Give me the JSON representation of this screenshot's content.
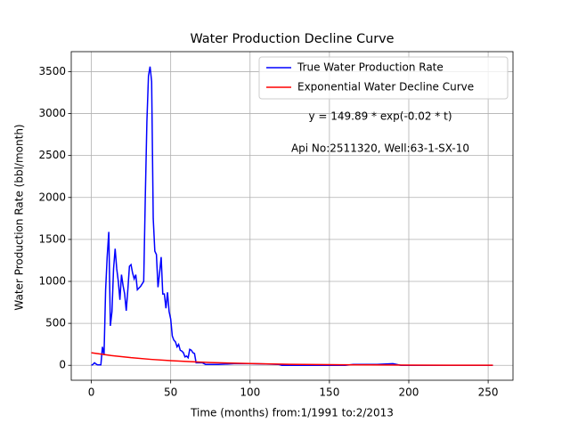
{
  "chart_data": {
    "type": "line",
    "title": "Water Production Decline Curve",
    "xlabel": "Time (months) from:1/1991 to:2/2013",
    "ylabel": "Water Production Rate (bbl/month)",
    "annotations": [
      "y = 149.89 * exp(-0.02 * t)",
      "Api No:2511320, Well:63-1-SX-10"
    ],
    "xlim": [
      -12.65,
      265.65
    ],
    "xticks": [
      0,
      50,
      100,
      150,
      200,
      250
    ],
    "ylim": [
      -178,
      3738
    ],
    "yticks": [
      0,
      500,
      1000,
      1500,
      2000,
      2500,
      3000,
      3500
    ],
    "grid": true,
    "legend": "upper right",
    "series": [
      {
        "name": "True Water Production Rate",
        "color": "#0000ff",
        "x": [
          0,
          1,
          2,
          3,
          4,
          5,
          6,
          7,
          8,
          9,
          10,
          11,
          12,
          13,
          14,
          15,
          16,
          17,
          18,
          19,
          20,
          21,
          22,
          23,
          24,
          25,
          26,
          27,
          28,
          29,
          30,
          31,
          32,
          33,
          34,
          35,
          36,
          37,
          38,
          39,
          40,
          41,
          42,
          43,
          44,
          45,
          46,
          47,
          48,
          49,
          50,
          51,
          52,
          53,
          54,
          55,
          56,
          57,
          58,
          59,
          60,
          61,
          62,
          63,
          64,
          65,
          66,
          70,
          72,
          80,
          90,
          100,
          110,
          118,
          120,
          140,
          160,
          165,
          180,
          190,
          195,
          253
        ],
        "values": [
          0,
          10,
          30,
          15,
          5,
          5,
          5,
          220,
          120,
          900,
          1300,
          1590,
          470,
          640,
          1150,
          1390,
          1150,
          1000,
          780,
          1080,
          950,
          850,
          650,
          900,
          1180,
          1200,
          1100,
          1030,
          1080,
          900,
          920,
          940,
          970,
          1000,
          2000,
          2900,
          3450,
          3560,
          3380,
          1750,
          1360,
          1320,
          930,
          1100,
          1290,
          850,
          850,
          680,
          870,
          640,
          550,
          350,
          300,
          280,
          220,
          250,
          180,
          170,
          150,
          100,
          110,
          90,
          190,
          180,
          150,
          140,
          30,
          30,
          10,
          10,
          20,
          20,
          15,
          10,
          0,
          0,
          0,
          10,
          10,
          20,
          0,
          0
        ]
      },
      {
        "name": "Exponential Water Decline Curve",
        "color": "#ff0000",
        "x": [
          0,
          12.5,
          25,
          37.5,
          50,
          62.5,
          75,
          100,
          125,
          150,
          175,
          200,
          225,
          253
        ],
        "values": [
          149.9,
          116.7,
          90.9,
          70.8,
          55.1,
          42.9,
          33.5,
          20.3,
          12.3,
          7.5,
          4.5,
          2.7,
          1.7,
          0.95
        ]
      }
    ]
  }
}
